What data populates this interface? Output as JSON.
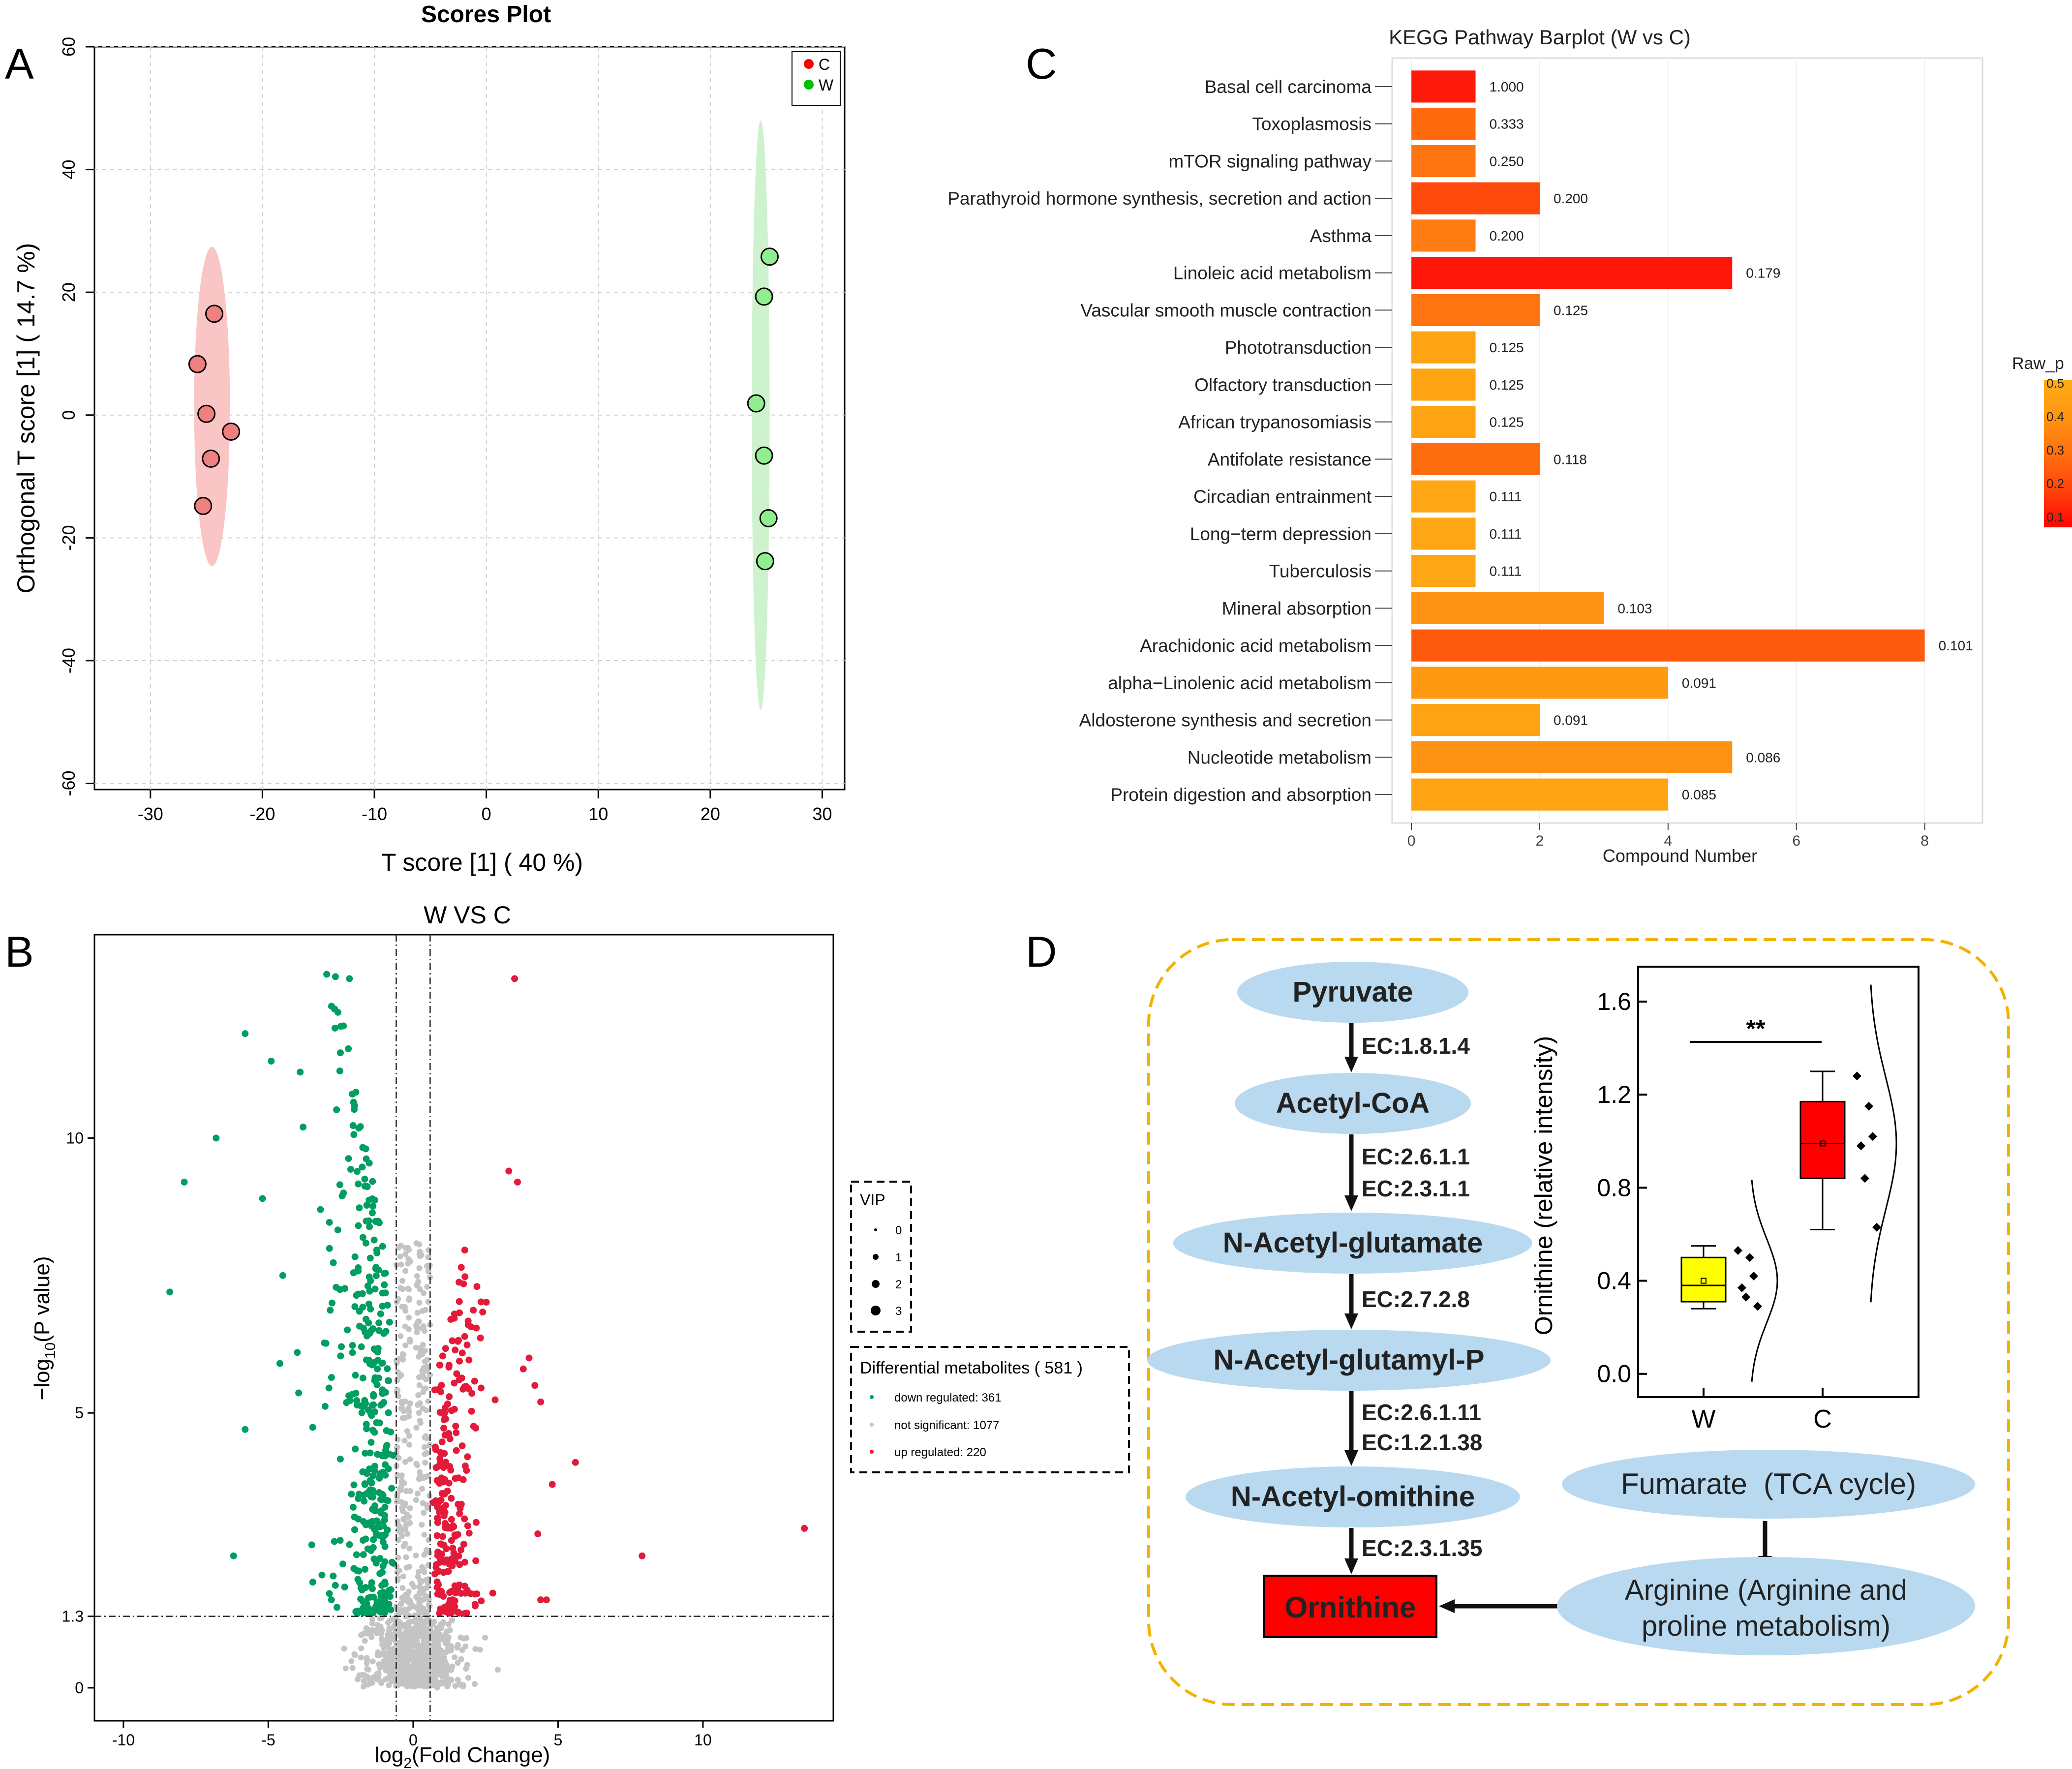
{
  "panels": {
    "a": "A",
    "b": "B",
    "c": "C",
    "d": "D"
  },
  "chart_data": [
    {
      "id": "A",
      "type": "scatter",
      "title": "Scores Plot",
      "xlabel": "T score [1] ( 40 %)",
      "ylabel": "Orthogonal T score [1] ( 14.7 %)",
      "xlim": [
        -35,
        32
      ],
      "ylim": [
        -61,
        60
      ],
      "xticks": [
        -30,
        -20,
        -10,
        0,
        10,
        20,
        30
      ],
      "yticks": [
        -60,
        -40,
        -20,
        0,
        20,
        40,
        60
      ],
      "grid": true,
      "legend_position": "top-right",
      "colors": {
        "C": "#ff0000",
        "W": "#00c000",
        "C_point": "#f08080",
        "W_point": "#90ee90",
        "C_ellipse": "#f9c5c5",
        "W_ellipse": "#cdf2cd"
      },
      "series": [
        {
          "name": "C",
          "points": [
            [
              -24.3,
              16.5
            ],
            [
              -25.8,
              8.3
            ],
            [
              -25.0,
              0.2
            ],
            [
              -22.8,
              -2.7
            ],
            [
              -24.6,
              -7.1
            ],
            [
              -25.3,
              -14.8
            ]
          ],
          "ellipse": {
            "cx": -24.5,
            "cy": 1.4,
            "rx": 1.6,
            "ry": 26
          }
        },
        {
          "name": "W",
          "points": [
            [
              25.3,
              25.8
            ],
            [
              24.8,
              19.3
            ],
            [
              24.1,
              1.9
            ],
            [
              24.8,
              -6.6
            ],
            [
              25.2,
              -16.8
            ],
            [
              24.9,
              -23.8
            ]
          ],
          "ellipse": {
            "cx": 24.5,
            "cy": 0,
            "rx": 0.8,
            "ry": 48
          }
        }
      ]
    },
    {
      "id": "B",
      "type": "scatter",
      "title": "W VS C",
      "xlabel": "log2(Fold Change)",
      "xlabel_main": "log",
      "xlabel_sub": "2",
      "xlabel_rest": "(Fold Change)",
      "ylabel": "-log10(P value)",
      "ylabel_main": "−log",
      "ylabel_sub": "10",
      "ylabel_rest": "(P value)",
      "xlim": [
        -11,
        14.5
      ],
      "ylim": [
        -0.6,
        13.7
      ],
      "xticks": [
        -10,
        -5,
        0,
        5,
        10
      ],
      "yticks": [
        0,
        1.3,
        5,
        10
      ],
      "ytick_labels": [
        "0",
        "1.3",
        "5",
        "10"
      ],
      "threshold_lines": {
        "x": [
          -0.585,
          0.585
        ],
        "y": 1.3
      },
      "colors": {
        "down": "#009e60",
        "ns": "#c4c4c4",
        "up": "#e41a3a"
      },
      "vip_legend": {
        "title": "VIP",
        "values": [
          "0",
          "1",
          "2",
          "3"
        ]
      },
      "diff_legend": {
        "title": "Differential metabolites ( 581 )",
        "items": [
          {
            "label": "down regulated: 361",
            "color": "#009e60"
          },
          {
            "label": "not significant: 1077",
            "color": "#c4c4c4"
          },
          {
            "label": "up regulated: 220",
            "color": "#e41a3a"
          }
        ]
      },
      "counts": {
        "down": 361,
        "not_significant": 1077,
        "up": 220
      },
      "highlight_points": {
        "down": [
          [
            -2.2,
            12.9
          ],
          [
            -5.8,
            11.9
          ],
          [
            -4.9,
            11.4
          ],
          [
            -3.9,
            11.2
          ],
          [
            -2.7,
            12.0
          ],
          [
            -2.1,
            10.8
          ],
          [
            -6.8,
            10.0
          ],
          [
            -7.9,
            9.2
          ],
          [
            -5.2,
            8.9
          ],
          [
            -3.8,
            10.2
          ],
          [
            -3.2,
            8.7
          ],
          [
            -8.4,
            7.2
          ],
          [
            -4.5,
            7.5
          ],
          [
            -2.8,
            7.0
          ],
          [
            -5.8,
            4.7
          ],
          [
            -6.2,
            2.4
          ],
          [
            -3.5,
            2.6
          ],
          [
            -4.0,
            6.1
          ],
          [
            -4.6,
            5.9
          ]
        ],
        "up": [
          [
            3.5,
            12.9
          ],
          [
            3.3,
            9.4
          ],
          [
            3.6,
            9.2
          ],
          [
            2.2,
            7.3
          ],
          [
            1.9,
            6.6
          ],
          [
            3.8,
            5.8
          ],
          [
            4.2,
            5.5
          ],
          [
            4.4,
            5.2
          ],
          [
            5.6,
            4.1
          ],
          [
            4.8,
            3.7
          ],
          [
            4.3,
            2.8
          ],
          [
            4.4,
            1.6
          ],
          [
            4.6,
            1.6
          ],
          [
            7.9,
            2.4
          ],
          [
            13.5,
            2.9
          ],
          [
            4.0,
            6.0
          ]
        ]
      }
    },
    {
      "id": "C",
      "type": "bar",
      "orientation": "horizontal",
      "title": "KEGG Pathway Barplot (W vs C)",
      "xlabel": "Compound Number",
      "xlim": [
        -0.3,
        8.9
      ],
      "xticks": [
        0,
        2,
        4,
        6,
        8
      ],
      "categories": [
        "Basal cell carcinoma",
        "Toxoplasmosis",
        "mTOR signaling pathway",
        "Parathyroid hormone synthesis, secretion and action",
        "Asthma",
        "Linoleic acid metabolism",
        "Vascular smooth muscle contraction",
        "Phototransduction",
        "Olfactory transduction",
        "African trypanosomiasis",
        "Antifolate resistance",
        "Circadian entrainment",
        "Long−term depression",
        "Tuberculosis",
        "Mineral absorption",
        "Arachidonic acid metabolism",
        "alpha−Linolenic acid metabolism",
        "Aldosterone synthesis and secretion",
        "Nucleotide metabolism",
        "Protein digestion and absorption"
      ],
      "values": [
        1,
        1,
        1,
        2,
        1,
        5,
        2,
        1,
        1,
        1,
        2,
        1,
        1,
        1,
        3,
        8,
        4,
        2,
        5,
        4
      ],
      "labels": [
        "1.000",
        "0.333",
        "0.250",
        "0.200",
        "0.200",
        "0.179",
        "0.125",
        "0.125",
        "0.125",
        "0.125",
        "0.118",
        "0.111",
        "0.111",
        "0.111",
        "0.103",
        "0.101",
        "0.091",
        "0.091",
        "0.086",
        "0.085"
      ],
      "colors": [
        "#fe1a0a",
        "#fe6a0d",
        "#fe7410",
        "#fe4b0c",
        "#fe7c12",
        "#fe1608",
        "#fe7411",
        "#fea412",
        "#fea412",
        "#fea412",
        "#fe6c10",
        "#fea613",
        "#fea613",
        "#fea613",
        "#fe9212",
        "#fe5a0e",
        "#fe9a12",
        "#fea412",
        "#fe9212",
        "#fea412"
      ],
      "legend": {
        "title": "Raw_p",
        "ticks": [
          "0.5",
          "0.4",
          "0.3",
          "0.2",
          "0.1"
        ],
        "gradient": [
          "#ffad14",
          "#ff9512",
          "#ff6f0f",
          "#ff430b",
          "#ff0505"
        ]
      }
    },
    {
      "id": "D",
      "type": "boxplot",
      "ylabel": "Ornithine (relative intensity)",
      "ylim": [
        -0.1,
        1.75
      ],
      "yticks": [
        0.0,
        0.4,
        0.8,
        1.2,
        1.6
      ],
      "ytick_labels": [
        "0.0",
        "0.4",
        "0.8",
        "1.2",
        "1.6"
      ],
      "categories": [
        "W",
        "C"
      ],
      "significance": "**",
      "groups": [
        {
          "name": "W",
          "color": "#ffff00",
          "min": 0.28,
          "q1": 0.31,
          "median": 0.38,
          "q3": 0.5,
          "max": 0.55,
          "mean": 0.4,
          "points": [
            0.53,
            0.5,
            0.42,
            0.37,
            0.33,
            0.29
          ]
        },
        {
          "name": "C",
          "color": "#ff0000",
          "min": 0.62,
          "q1": 0.84,
          "median": 0.99,
          "q3": 1.17,
          "max": 1.3,
          "mean": 0.99,
          "points": [
            1.28,
            1.15,
            1.02,
            0.98,
            0.84,
            0.63
          ]
        }
      ]
    }
  ],
  "pathway": {
    "nodes": [
      "Pyruvate",
      "Acetyl-CoA",
      "N-Acetyl-glutamate",
      "N-Acetyl-glutamyl-P",
      "N-Acetyl-omithine",
      "Ornithine"
    ],
    "enzymes": [
      [
        "EC:1.8.1.4"
      ],
      [
        "EC:2.6.1.1",
        "EC:2.3.1.1"
      ],
      [
        "EC:2.7.2.8"
      ],
      [
        "EC:2.6.1.11",
        "EC:1.2.1.38"
      ],
      [
        "EC:2.3.1.35"
      ]
    ],
    "fumarate": "Fumarate  (TCA cycle)",
    "arginine": [
      "Arginine (Arginine and",
      "proline metabolism)"
    ],
    "colors": {
      "node": "#b9d9f0",
      "ornithine": "#ff0000",
      "border": "#f0b400"
    }
  }
}
